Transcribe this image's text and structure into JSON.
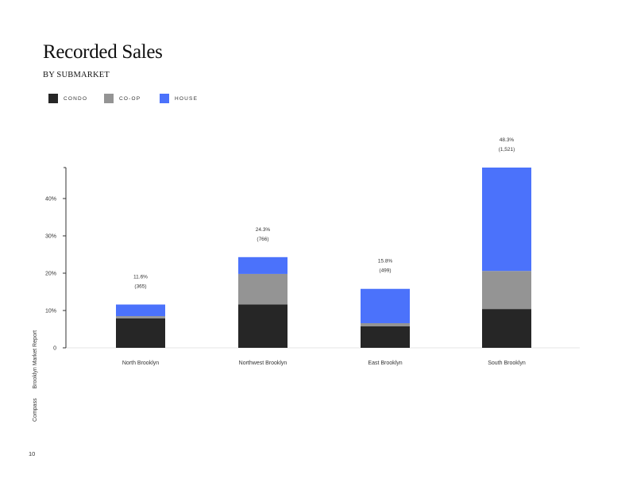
{
  "page": {
    "title": "Recorded Sales",
    "subtitle": "BY SUBMARKET",
    "side_brand": "Compass",
    "side_report": "Brooklyn Market Report",
    "page_number": "10"
  },
  "colors": {
    "condo": "#262626",
    "coop": "#949494",
    "house": "#4b72fb"
  },
  "legend": [
    {
      "label": "CONDO",
      "color": "#262626"
    },
    {
      "label": "CO-OP",
      "color": "#949494"
    },
    {
      "label": "HOUSE",
      "color": "#4b72fb"
    }
  ],
  "chart_data": {
    "type": "bar",
    "stacked": true,
    "categories": [
      "North Brooklyn",
      "Northwest Brooklyn",
      "East Brooklyn",
      "South Brooklyn"
    ],
    "series": [
      {
        "name": "CONDO",
        "values": [
          7.9,
          11.6,
          5.8,
          10.4
        ]
      },
      {
        "name": "CO-OP",
        "values": [
          0.6,
          8.2,
          0.8,
          10.2
        ]
      },
      {
        "name": "HOUSE",
        "values": [
          3.1,
          4.5,
          9.2,
          27.7
        ]
      }
    ],
    "totals_label": [
      "11.6%",
      "24.3%",
      "15.8%",
      "48.3%"
    ],
    "counts_label": [
      "(365)",
      "(766)",
      "(499)",
      "(1,521)"
    ],
    "yticks": [
      0,
      10,
      20,
      30,
      40
    ],
    "ytick_labels": [
      "0",
      "10%",
      "20%",
      "30%",
      "40%"
    ],
    "ylim": [
      0,
      48.3
    ],
    "xlabel": "",
    "ylabel": "",
    "grid": false,
    "legend_position": "top-left"
  }
}
